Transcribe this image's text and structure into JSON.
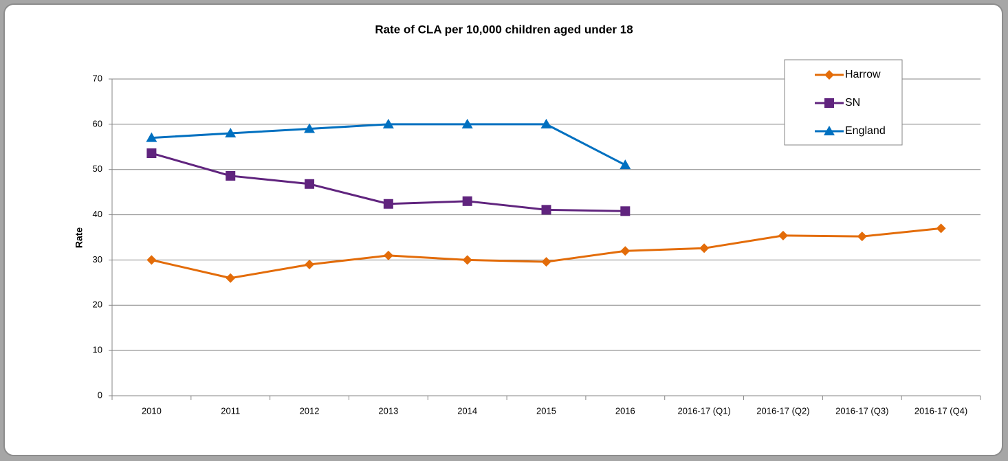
{
  "chart_data": {
    "type": "line",
    "title": "Rate of CLA per 10,000 children aged under 18",
    "ylabel": "Rate",
    "categories": [
      "2010",
      "2011",
      "2012",
      "2013",
      "2014",
      "2015",
      "2016",
      "2016-17 (Q1)",
      "2016-17 (Q2)",
      "2016-17 (Q3)",
      "2016-17 (Q4)"
    ],
    "series": [
      {
        "name": "Harrow",
        "color": "#e36c09",
        "marker": "diamond",
        "values": [
          30,
          26,
          29,
          31,
          30,
          29.6,
          32,
          32.6,
          35.4,
          35.2,
          37
        ]
      },
      {
        "name": "SN",
        "color": "#60247e",
        "marker": "square",
        "values": [
          53.6,
          48.6,
          46.8,
          42.4,
          43,
          41.1,
          40.8,
          null,
          null,
          null,
          null
        ]
      },
      {
        "name": "England",
        "color": "#0070c0",
        "marker": "triangle",
        "values": [
          57,
          58,
          59,
          60,
          60,
          60,
          51,
          null,
          null,
          null,
          null
        ]
      }
    ],
    "ylim": [
      0,
      70
    ],
    "yticks": [
      0,
      10,
      20,
      30,
      40,
      50,
      60,
      70
    ],
    "grid": true,
    "legend": "upper right"
  }
}
